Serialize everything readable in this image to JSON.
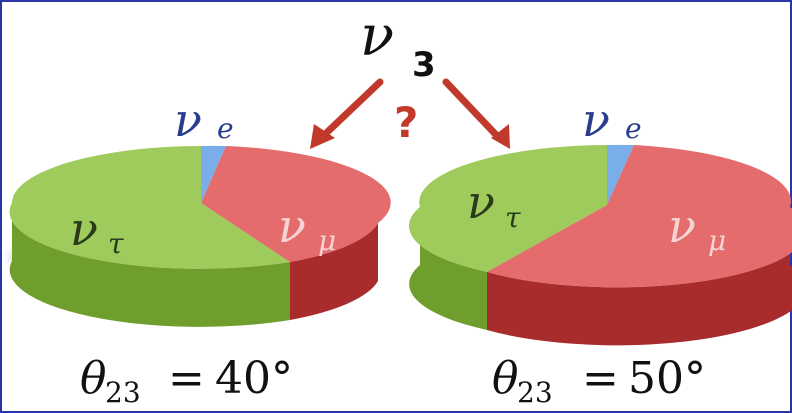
{
  "top_label": {
    "symbol": "ν",
    "subscript": "3"
  },
  "question_mark": "?",
  "pies": [
    {
      "name": "left",
      "labels": {
        "nu_e": {
          "symbol": "ν",
          "subscript": "e"
        },
        "nu_mu": {
          "symbol": "ν",
          "subscript": "μ"
        },
        "nu_tau": {
          "symbol": "ν",
          "subscript": "τ"
        }
      },
      "caption": {
        "theta": "θ",
        "subscript": "23",
        "equals": "=",
        "value": "40°"
      }
    },
    {
      "name": "right",
      "labels": {
        "nu_e": {
          "symbol": "ν",
          "subscript": "e"
        },
        "nu_mu": {
          "symbol": "ν",
          "subscript": "μ"
        },
        "nu_tau": {
          "symbol": "ν",
          "subscript": "τ"
        }
      },
      "caption": {
        "theta": "θ",
        "subscript": "23",
        "equals": "=",
        "value": "50°"
      }
    }
  ],
  "colors": {
    "border": "#2a35a8",
    "green_top": "#9ecb5c",
    "green_side": "#6f9e2d",
    "red_top": "#e56c6c",
    "red_side": "#a82c2c",
    "blue_top": "#7aaee8",
    "blue_side": "#3f78bf",
    "arrow": "#c0392b",
    "question": "#c0392b",
    "label_dark": "#2b3a1c",
    "label_light": "#f6d4d4",
    "label_blue": "#2a3c8c",
    "text": "#111111"
  }
}
